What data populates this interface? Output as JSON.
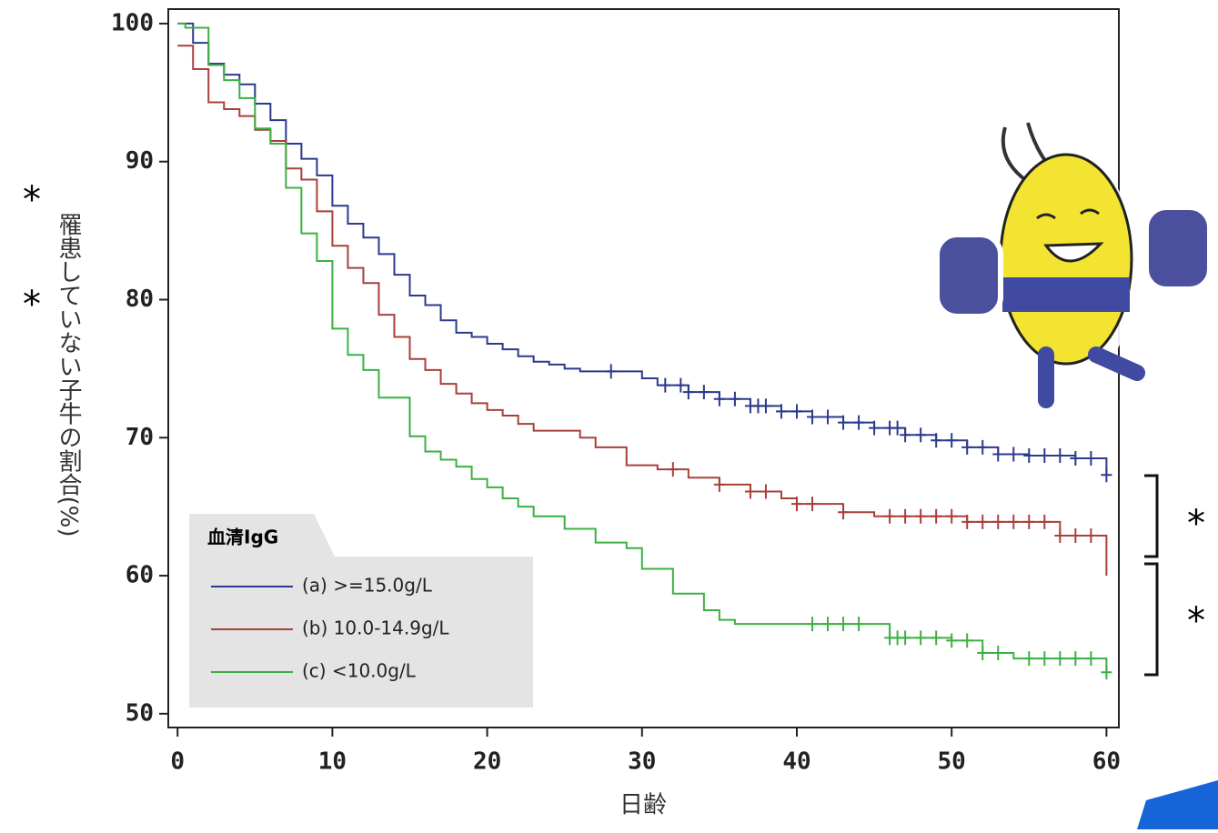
{
  "chart_data": {
    "type": "step",
    "ylabel": "罹患していない子牛の割合(%)",
    "xlabel": "日齢",
    "xlim": [
      -0.6,
      60.8
    ],
    "ylim": [
      49.0,
      101.05
    ],
    "xticks": [
      0,
      10,
      20,
      30,
      40,
      50,
      60
    ],
    "yticks": [
      50,
      60,
      70,
      80,
      90,
      100
    ],
    "legend_title": "血清IgG",
    "legend_position": "lower left",
    "series": [
      {
        "name": "(a) >=15.0g/L",
        "color": "#2b3a8c",
        "x": [
          0,
          1,
          2,
          3,
          4,
          5,
          6,
          7,
          8,
          9,
          10,
          11,
          12,
          13,
          14,
          15,
          16,
          17,
          18,
          19,
          20,
          21,
          22,
          23,
          24,
          25,
          26,
          30,
          31,
          33,
          35,
          37,
          39,
          41,
          43,
          45,
          47,
          49,
          51,
          53,
          55,
          58,
          60
        ],
        "values": [
          100,
          98.6,
          97.1,
          96.3,
          95.6,
          94.2,
          93.0,
          91.3,
          90.2,
          89.0,
          86.8,
          85.5,
          84.5,
          83.3,
          81.8,
          80.3,
          79.6,
          78.5,
          77.6,
          77.3,
          76.8,
          76.4,
          75.9,
          75.5,
          75.3,
          75.0,
          74.8,
          74.3,
          73.8,
          73.3,
          72.8,
          72.3,
          71.9,
          71.5,
          71.1,
          70.7,
          70.2,
          69.8,
          69.3,
          68.8,
          68.7,
          68.5,
          67.3
        ],
        "censored_x": [
          28,
          31.5,
          32.5,
          33,
          34,
          35,
          36,
          37,
          37.5,
          38,
          39,
          40,
          41,
          42,
          43,
          44,
          45,
          46,
          46.5,
          47,
          48,
          49,
          50,
          51,
          52,
          53,
          54,
          55,
          56,
          57,
          58,
          59,
          60
        ]
      },
      {
        "name": "(b) 10.0-14.9g/L",
        "color": "#a8403a",
        "x": [
          0,
          1,
          2,
          3,
          4,
          5,
          6,
          7,
          8,
          9,
          10,
          11,
          12,
          13,
          14,
          15,
          16,
          17,
          18,
          19,
          20,
          21,
          22,
          23,
          26,
          27,
          29,
          31,
          33,
          35,
          37,
          39,
          40,
          43,
          45,
          51,
          57,
          60
        ],
        "values": [
          98.4,
          96.7,
          94.3,
          93.8,
          93.3,
          92.3,
          91.5,
          89.5,
          88.7,
          86.4,
          83.9,
          82.3,
          81.2,
          78.9,
          77.3,
          75.7,
          74.9,
          73.9,
          73.2,
          72.5,
          72.0,
          71.6,
          71.0,
          70.5,
          70.0,
          69.3,
          68.0,
          67.7,
          67.1,
          66.6,
          66.1,
          65.6,
          65.2,
          64.6,
          64.3,
          63.9,
          62.9,
          60.0
        ],
        "censored_x": [
          32,
          35,
          37,
          38,
          40,
          41,
          43,
          46,
          47,
          48,
          49,
          50,
          51,
          52,
          53,
          54,
          55,
          56,
          57,
          58,
          59
        ]
      },
      {
        "name": "(c) <10.0g/L",
        "color": "#3cb043",
        "x": [
          0,
          0.5,
          2,
          3,
          4,
          5,
          6,
          7,
          8,
          9,
          10,
          11,
          12,
          13,
          15,
          16,
          17,
          18,
          19,
          20,
          21,
          22,
          23,
          25,
          27,
          29,
          30,
          32,
          34,
          35,
          36,
          46,
          50,
          52,
          54,
          60
        ],
        "values": [
          100,
          99.7,
          97.0,
          95.9,
          94.6,
          92.4,
          91.3,
          88.1,
          84.8,
          82.8,
          77.9,
          76.0,
          74.9,
          72.9,
          70.1,
          69.0,
          68.4,
          67.9,
          67.0,
          66.4,
          65.6,
          65.0,
          64.3,
          63.4,
          62.4,
          62.0,
          60.5,
          58.7,
          57.5,
          56.8,
          56.5,
          55.5,
          55.3,
          54.4,
          54.0,
          53.0
        ],
        "censored_x": [
          41,
          42,
          43,
          44,
          46,
          46.5,
          47,
          48,
          49,
          50,
          51,
          52,
          53,
          55,
          56,
          57,
          58,
          59,
          60
        ]
      }
    ],
    "annotations": [
      "*",
      "*",
      "*",
      "*"
    ]
  }
}
